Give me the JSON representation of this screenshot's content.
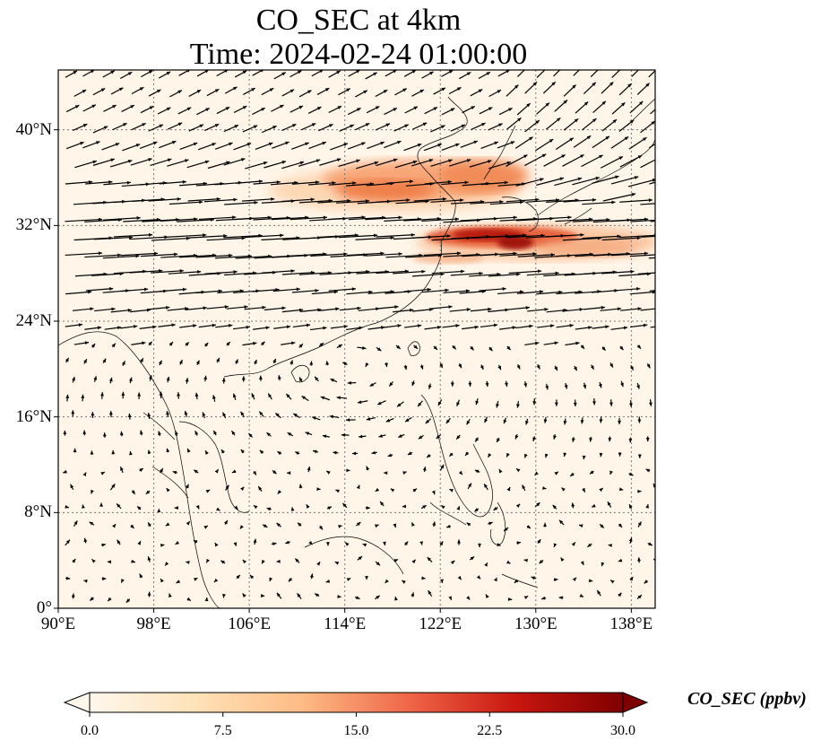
{
  "title": {
    "line1": "CO_SEC at 4km",
    "line2": "Time: 2024-02-24 01:00:00"
  },
  "map": {
    "extent": {
      "lon_min": 90,
      "lon_max": 140,
      "lat_min": 0,
      "lat_max": 45
    },
    "lat_ticks": [
      {
        "value": 40,
        "label": "40°N"
      },
      {
        "value": 32,
        "label": "32°N"
      },
      {
        "value": 24,
        "label": "24°N"
      },
      {
        "value": 16,
        "label": "16°N"
      },
      {
        "value": 8,
        "label": "8°N"
      },
      {
        "value": 0,
        "label": "0°"
      }
    ],
    "lon_ticks": [
      {
        "value": 90,
        "label": "90°E"
      },
      {
        "value": 98,
        "label": "98°E"
      },
      {
        "value": 106,
        "label": "106°E"
      },
      {
        "value": 114,
        "label": "114°E"
      },
      {
        "value": 122,
        "label": "122°E"
      },
      {
        "value": 130,
        "label": "130°E"
      },
      {
        "value": 138,
        "label": "138°E"
      }
    ],
    "gridlines": true,
    "background_color": "#fff5e8",
    "plume_color": "#ee7a45",
    "core_color": "#b81a10"
  },
  "colorbar": {
    "label": "CO_SEC (ppbv)",
    "min": 0,
    "max": 30,
    "colormap": "OrRd",
    "extend": "both",
    "ticks": [
      {
        "value": 0,
        "label": "0.0"
      },
      {
        "value": 7.5,
        "label": "7.5"
      },
      {
        "value": 15,
        "label": "15.0"
      },
      {
        "value": 22.5,
        "label": "22.5"
      },
      {
        "value": 30,
        "label": "30.0"
      }
    ]
  }
}
